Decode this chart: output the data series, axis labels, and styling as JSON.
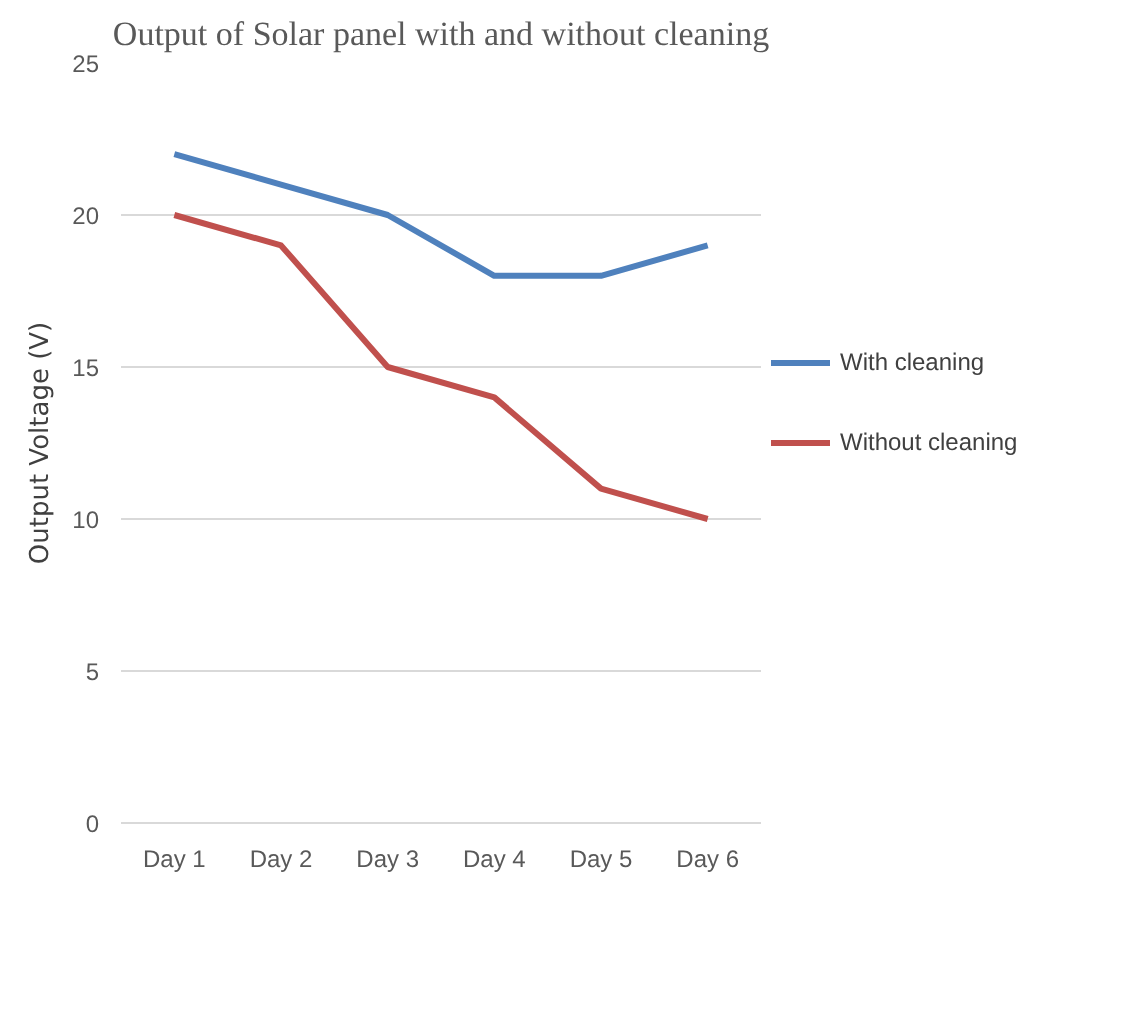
{
  "chart_data": {
    "type": "line",
    "title": "Output of Solar panel with and without cleaning",
    "ylabel": "Output Voltage (V)",
    "categories": [
      "Day 1",
      "Day 2",
      "Day 3",
      "Day 4",
      "Day 5",
      "Day 6"
    ],
    "series": [
      {
        "name": "With cleaning",
        "color": "#4f81bd",
        "values": [
          22,
          21,
          20,
          18,
          18,
          19
        ]
      },
      {
        "name": "Without cleaning",
        "color": "#c0504d",
        "values": [
          20,
          19,
          15,
          14,
          11,
          10
        ]
      }
    ],
    "ylim": [
      0,
      25
    ],
    "yticks": [
      0,
      5,
      10,
      15,
      20,
      25
    ],
    "grid": "y",
    "legend": "right",
    "marker": "none",
    "line_style": "solid"
  }
}
